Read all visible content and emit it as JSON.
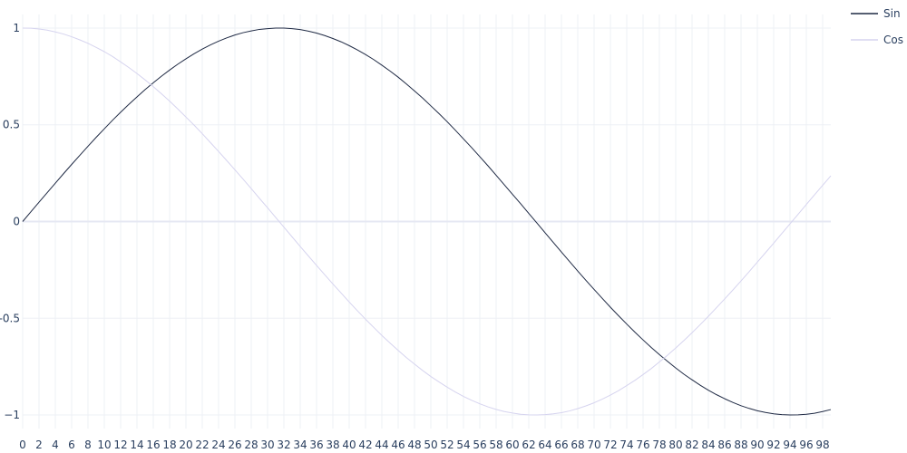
{
  "chart_data": {
    "type": "line",
    "title": "",
    "xlabel": "",
    "ylabel": "",
    "xlim": [
      0,
      99
    ],
    "ylim": [
      -1.07,
      1.07
    ],
    "x_ticks": [
      0,
      2,
      4,
      6,
      8,
      10,
      12,
      14,
      16,
      18,
      20,
      22,
      24,
      26,
      28,
      30,
      32,
      34,
      36,
      38,
      40,
      42,
      44,
      46,
      48,
      50,
      52,
      54,
      56,
      58,
      60,
      62,
      64,
      66,
      68,
      70,
      72,
      74,
      76,
      78,
      80,
      82,
      84,
      86,
      88,
      90,
      92,
      94,
      96,
      98
    ],
    "y_ticks": [
      {
        "value": 1,
        "label": "1"
      },
      {
        "value": 0.5,
        "label": "0.5"
      },
      {
        "value": 0,
        "label": "0"
      },
      {
        "value": -0.5,
        "label": "-0.5"
      },
      {
        "value": -1,
        "label": "−1"
      }
    ],
    "grid": true,
    "legend_position": "top-right",
    "series": [
      {
        "name": "Sin",
        "color": "#1f2a44",
        "x": [
          0,
          1,
          2,
          3,
          4,
          5,
          6,
          7,
          8,
          9,
          10,
          11,
          12,
          13,
          14,
          15,
          16,
          17,
          18,
          19,
          20,
          21,
          22,
          23,
          24,
          25,
          26,
          27,
          28,
          29,
          30,
          31,
          32,
          33,
          34,
          35,
          36,
          37,
          38,
          39,
          40,
          41,
          42,
          43,
          44,
          45,
          46,
          47,
          48,
          49,
          50,
          51,
          52,
          53,
          54,
          55,
          56,
          57,
          58,
          59,
          60,
          61,
          62,
          63,
          64,
          65,
          66,
          67,
          68,
          69,
          70,
          71,
          72,
          73,
          74,
          75,
          76,
          77,
          78,
          79,
          80,
          81,
          82,
          83,
          84,
          85,
          86,
          87,
          88,
          89,
          90,
          91,
          92,
          93,
          94,
          95,
          96,
          97,
          98,
          99
        ],
        "y": [
          0,
          0.05,
          0.1,
          0.149,
          0.198,
          0.247,
          0.295,
          0.342,
          0.389,
          0.435,
          0.479,
          0.523,
          0.565,
          0.605,
          0.644,
          0.682,
          0.717,
          0.751,
          0.783,
          0.813,
          0.841,
          0.867,
          0.891,
          0.913,
          0.932,
          0.949,
          0.964,
          0.976,
          0.985,
          0.993,
          0.997,
          1.0,
          1.0,
          0.997,
          0.992,
          0.984,
          0.974,
          0.961,
          0.946,
          0.929,
          0.909,
          0.887,
          0.863,
          0.837,
          0.808,
          0.778,
          0.746,
          0.711,
          0.675,
          0.638,
          0.598,
          0.558,
          0.516,
          0.472,
          0.427,
          0.382,
          0.335,
          0.288,
          0.239,
          0.19,
          0.141,
          0.092,
          0.042,
          -0.008,
          -0.058,
          -0.108,
          -0.158,
          -0.207,
          -0.256,
          -0.304,
          -0.351,
          -0.397,
          -0.443,
          -0.487,
          -0.53,
          -0.572,
          -0.612,
          -0.651,
          -0.688,
          -0.723,
          -0.757,
          -0.789,
          -0.818,
          -0.846,
          -0.872,
          -0.895,
          -0.916,
          -0.935,
          -0.952,
          -0.966,
          -0.978,
          -0.987,
          -0.994,
          -0.998,
          -1.0,
          -0.999,
          -0.996,
          -0.991,
          -0.982,
          -0.972
        ]
      },
      {
        "name": "Cos",
        "color": "#d6d4ef",
        "x": [
          0,
          1,
          2,
          3,
          4,
          5,
          6,
          7,
          8,
          9,
          10,
          11,
          12,
          13,
          14,
          15,
          16,
          17,
          18,
          19,
          20,
          21,
          22,
          23,
          24,
          25,
          26,
          27,
          28,
          29,
          30,
          31,
          32,
          33,
          34,
          35,
          36,
          37,
          38,
          39,
          40,
          41,
          42,
          43,
          44,
          45,
          46,
          47,
          48,
          49,
          50,
          51,
          52,
          53,
          54,
          55,
          56,
          57,
          58,
          59,
          60,
          61,
          62,
          63,
          64,
          65,
          66,
          67,
          68,
          69,
          70,
          71,
          72,
          73,
          74,
          75,
          76,
          77,
          78,
          79,
          80,
          81,
          82,
          83,
          84,
          85,
          86,
          87,
          88,
          89,
          90,
          91,
          92,
          93,
          94,
          95,
          96,
          97,
          98,
          99
        ],
        "y": [
          1.0,
          0.999,
          0.995,
          0.989,
          0.98,
          0.969,
          0.955,
          0.939,
          0.921,
          0.9,
          0.878,
          0.853,
          0.825,
          0.796,
          0.765,
          0.732,
          0.697,
          0.66,
          0.622,
          0.582,
          0.54,
          0.498,
          0.454,
          0.408,
          0.362,
          0.315,
          0.267,
          0.219,
          0.17,
          0.12,
          0.071,
          0.021,
          -0.029,
          -0.079,
          -0.129,
          -0.178,
          -0.227,
          -0.275,
          -0.323,
          -0.369,
          -0.416,
          -0.461,
          -0.505,
          -0.547,
          -0.589,
          -0.628,
          -0.666,
          -0.703,
          -0.737,
          -0.77,
          -0.801,
          -0.829,
          -0.856,
          -0.881,
          -0.904,
          -0.924,
          -0.942,
          -0.958,
          -0.971,
          -0.982,
          -0.99,
          -0.996,
          -0.999,
          -1.0,
          -0.998,
          -0.994,
          -0.988,
          -0.979,
          -0.967,
          -0.953,
          -0.937,
          -0.918,
          -0.897,
          -0.874,
          -0.848,
          -0.821,
          -0.791,
          -0.76,
          -0.726,
          -0.691,
          -0.654,
          -0.615,
          -0.575,
          -0.533,
          -0.49,
          -0.445,
          -0.4,
          -0.354,
          -0.307,
          -0.259,
          -0.21,
          -0.161,
          -0.112,
          -0.062,
          -0.012,
          0.038,
          0.088,
          0.138,
          0.187,
          0.236
        ]
      }
    ]
  }
}
